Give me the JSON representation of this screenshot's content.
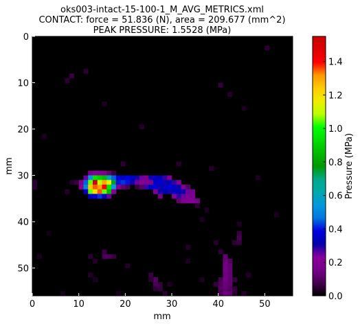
{
  "chart_data": {
    "type": "heatmap",
    "title_lines": [
      "oks003-intact-15-100-1_M_AVG_METRICS.xml",
      "CONTACT: force = 51.836 (N), area = 209.677 (mm^2)",
      "PEAK PRESSURE: 1.5528 (MPa)"
    ],
    "xlabel": "mm",
    "ylabel": "mm",
    "xlim": [
      0,
      56
    ],
    "ylim": [
      56,
      0
    ],
    "xticks": [
      "0",
      "10",
      "20",
      "30",
      "40",
      "50"
    ],
    "yticks": [
      "0",
      "10",
      "20",
      "30",
      "40",
      "50"
    ],
    "colorbar": {
      "label": "Pressure (MPa)",
      "range": [
        0,
        1.55
      ],
      "ticks": [
        "0.0",
        "0.2",
        "0.4",
        "0.6",
        "0.8",
        "1.0",
        "1.2",
        "1.4"
      ],
      "colormap": "nipy_spectral"
    },
    "cells": [
      [
        12,
        29,
        0.18
      ],
      [
        13,
        29,
        0.22
      ],
      [
        14,
        29,
        0.2
      ],
      [
        15,
        29,
        0.18
      ],
      [
        16,
        29,
        0.12
      ],
      [
        17,
        29,
        0.06
      ],
      [
        11,
        30,
        0.25
      ],
      [
        12,
        30,
        0.55
      ],
      [
        13,
        30,
        0.95
      ],
      [
        14,
        30,
        0.9
      ],
      [
        15,
        30,
        0.85
      ],
      [
        16,
        30,
        0.6
      ],
      [
        17,
        30,
        0.45
      ],
      [
        18,
        30,
        0.38
      ],
      [
        19,
        30,
        0.35
      ],
      [
        20,
        30,
        0.38
      ],
      [
        21,
        30,
        0.35
      ],
      [
        22,
        30,
        0.3
      ],
      [
        23,
        30,
        0.25
      ],
      [
        24,
        30,
        0.18
      ],
      [
        25,
        30,
        0.3
      ],
      [
        26,
        30,
        0.35
      ],
      [
        27,
        30,
        0.32
      ],
      [
        28,
        30,
        0.28
      ],
      [
        29,
        30,
        0.2
      ],
      [
        10,
        31,
        0.2
      ],
      [
        11,
        31,
        0.45
      ],
      [
        12,
        31,
        1.05
      ],
      [
        13,
        31,
        1.55
      ],
      [
        14,
        31,
        1.1
      ],
      [
        15,
        31,
        1.3
      ],
      [
        16,
        31,
        1.15
      ],
      [
        17,
        31,
        0.75
      ],
      [
        18,
        31,
        0.4
      ],
      [
        19,
        31,
        0.42
      ],
      [
        20,
        31,
        0.4
      ],
      [
        21,
        31,
        0.3
      ],
      [
        22,
        31,
        0.25
      ],
      [
        23,
        31,
        0.22
      ],
      [
        24,
        31,
        0.2
      ],
      [
        25,
        31,
        0.18
      ],
      [
        26,
        31,
        0.35
      ],
      [
        27,
        31,
        0.38
      ],
      [
        28,
        31,
        0.3
      ],
      [
        29,
        31,
        0.32
      ],
      [
        30,
        31,
        0.28
      ],
      [
        31,
        31,
        0.2
      ],
      [
        10,
        32,
        0.22
      ],
      [
        11,
        32,
        0.5
      ],
      [
        12,
        32,
        1.25
      ],
      [
        13,
        32,
        1.35
      ],
      [
        14,
        32,
        1.3
      ],
      [
        15,
        32,
        1.4
      ],
      [
        16,
        32,
        0.95
      ],
      [
        17,
        32,
        0.55
      ],
      [
        18,
        32,
        0.2
      ],
      [
        19,
        32,
        0.12
      ],
      [
        20,
        32,
        0.08
      ],
      [
        22,
        32,
        0.06
      ],
      [
        23,
        32,
        0.1
      ],
      [
        24,
        32,
        0.28
      ],
      [
        25,
        32,
        0.35
      ],
      [
        26,
        32,
        0.38
      ],
      [
        27,
        32,
        0.3
      ],
      [
        28,
        32,
        0.35
      ],
      [
        29,
        32,
        0.38
      ],
      [
        30,
        32,
        0.35
      ],
      [
        31,
        32,
        0.3
      ],
      [
        32,
        32,
        0.2
      ],
      [
        33,
        32,
        0.1
      ],
      [
        11,
        33,
        0.35
      ],
      [
        12,
        33,
        1.05
      ],
      [
        13,
        33,
        1.2
      ],
      [
        14,
        33,
        1.35
      ],
      [
        15,
        33,
        1.05
      ],
      [
        16,
        33,
        0.85
      ],
      [
        17,
        33,
        0.22
      ],
      [
        26,
        33,
        0.2
      ],
      [
        27,
        33,
        0.3
      ],
      [
        28,
        33,
        0.32
      ],
      [
        29,
        33,
        0.3
      ],
      [
        30,
        33,
        0.35
      ],
      [
        31,
        33,
        0.33
      ],
      [
        32,
        33,
        0.3
      ],
      [
        33,
        33,
        0.25
      ],
      [
        34,
        33,
        0.15
      ],
      [
        12,
        34,
        0.35
      ],
      [
        13,
        34,
        0.38
      ],
      [
        14,
        34,
        0.42
      ],
      [
        15,
        34,
        0.35
      ],
      [
        16,
        34,
        0.25
      ],
      [
        27,
        34,
        0.15
      ],
      [
        30,
        34,
        0.22
      ],
      [
        31,
        34,
        0.28
      ],
      [
        32,
        34,
        0.25
      ],
      [
        33,
        34,
        0.2
      ],
      [
        34,
        34,
        0.18
      ],
      [
        31,
        35,
        0.12
      ],
      [
        32,
        35,
        0.18
      ],
      [
        33,
        35,
        0.2
      ],
      [
        34,
        35,
        0.2
      ],
      [
        35,
        35,
        0.15
      ],
      [
        0,
        31,
        0.05
      ],
      [
        0,
        32,
        0.05
      ],
      [
        8,
        31,
        0.04
      ],
      [
        9,
        31,
        0.06
      ],
      [
        7,
        33,
        0.04
      ],
      [
        35,
        36,
        0.05
      ],
      [
        37,
        37,
        0.03
      ],
      [
        36,
        39,
        0.03
      ],
      [
        8,
        8,
        0.06
      ],
      [
        7,
        9,
        0.05
      ],
      [
        11,
        7,
        0.05
      ],
      [
        40,
        10,
        0.06
      ],
      [
        42,
        12,
        0.04
      ],
      [
        50,
        2,
        0.05
      ],
      [
        15,
        14,
        0.03
      ],
      [
        23,
        19,
        0.04
      ],
      [
        45,
        15,
        0.03
      ],
      [
        31,
        27,
        0.04
      ],
      [
        19,
        27,
        0.05
      ],
      [
        38,
        28,
        0.04
      ],
      [
        2,
        21,
        0.03
      ],
      [
        33,
        45,
        0.04
      ],
      [
        44,
        40,
        0.03
      ],
      [
        15,
        46,
        0.06
      ],
      [
        12,
        47,
        0.05
      ],
      [
        15,
        47,
        0.08
      ],
      [
        16,
        47,
        0.08
      ],
      [
        17,
        47,
        0.06
      ],
      [
        13,
        48,
        0.04
      ],
      [
        44,
        42,
        0.06
      ],
      [
        44,
        43,
        0.08
      ],
      [
        43,
        44,
        0.05
      ],
      [
        44,
        44,
        0.06
      ],
      [
        39,
        44,
        0.04
      ],
      [
        40,
        46,
        0.05
      ],
      [
        41,
        47,
        0.12
      ],
      [
        41,
        48,
        0.14
      ],
      [
        42,
        48,
        0.1
      ],
      [
        41,
        49,
        0.15
      ],
      [
        42,
        49,
        0.12
      ],
      [
        41,
        50,
        0.16
      ],
      [
        42,
        50,
        0.13
      ],
      [
        41,
        51,
        0.14
      ],
      [
        42,
        51,
        0.12
      ],
      [
        40,
        52,
        0.08
      ],
      [
        41,
        52,
        0.15
      ],
      [
        42,
        52,
        0.12
      ],
      [
        43,
        52,
        0.06
      ],
      [
        39,
        53,
        0.06
      ],
      [
        40,
        53,
        0.09
      ],
      [
        41,
        53,
        0.14
      ],
      [
        42,
        53,
        0.12
      ],
      [
        40,
        54,
        0.1
      ],
      [
        41,
        54,
        0.12
      ],
      [
        42,
        54,
        0.1
      ],
      [
        43,
        54,
        0.06
      ],
      [
        40,
        55,
        0.08
      ],
      [
        41,
        55,
        0.14
      ],
      [
        42,
        55,
        0.12
      ],
      [
        43,
        55,
        0.05
      ],
      [
        25,
        51,
        0.06
      ],
      [
        26,
        52,
        0.1
      ],
      [
        25,
        52,
        0.05
      ],
      [
        26,
        53,
        0.08
      ],
      [
        27,
        53,
        0.06
      ],
      [
        26,
        54,
        0.05
      ],
      [
        27,
        54,
        0.06
      ],
      [
        28,
        55,
        0.05
      ],
      [
        12,
        51,
        0.04
      ],
      [
        13,
        52,
        0.03
      ],
      [
        20,
        49,
        0.04
      ],
      [
        29,
        53,
        0.03
      ],
      [
        36,
        52,
        0.03
      ],
      [
        46,
        51,
        0.04
      ],
      [
        45,
        55,
        0.04
      ],
      [
        1,
        47,
        0.03
      ],
      [
        6,
        55,
        0.03
      ],
      [
        18,
        55,
        0.03
      ],
      [
        33,
        48,
        0.03
      ],
      [
        3,
        42,
        0.02
      ],
      [
        52,
        38,
        0.03
      ],
      [
        48,
        30,
        0.03
      ]
    ]
  }
}
